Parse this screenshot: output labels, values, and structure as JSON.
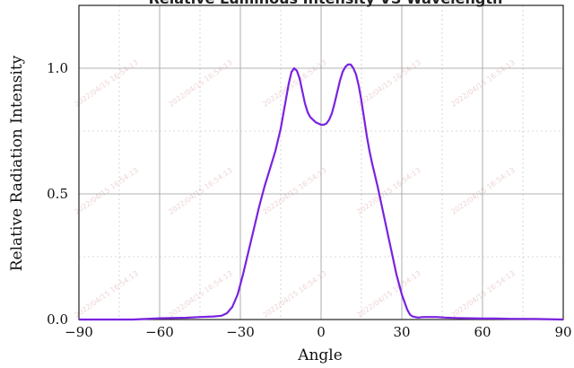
{
  "chart_data": {
    "type": "line",
    "title": "Relative Luminous Intensity VS Wavelength",
    "xlabel": "Angle",
    "ylabel": "Relative Radiation Intensity",
    "xlim": [
      -90,
      90
    ],
    "ylim": [
      0,
      1.25
    ],
    "x_ticks": [
      -90,
      -60,
      -30,
      0,
      30,
      60,
      90
    ],
    "x_tick_labels": [
      "−90",
      "−60",
      "−30",
      "0",
      "30",
      "60",
      "90"
    ],
    "y_ticks": [
      0,
      0.5,
      1.0
    ],
    "y_tick_labels": [
      "0.0",
      "0.5",
      "1.0"
    ],
    "grid": true,
    "line_color": "#7a22e0",
    "watermark": {
      "date": "2022/04/15 16:54:13"
    },
    "series": [
      {
        "x": [
          -90,
          -70,
          -60,
          -50,
          -45,
          -40,
          -37,
          -35,
          -33,
          -31,
          -29,
          -27,
          -25,
          -23,
          -21,
          -19,
          -17,
          -15,
          -13,
          -12,
          -11,
          -10,
          -9,
          -8,
          -7,
          -6,
          -5,
          -4,
          -3,
          -2,
          -1,
          0,
          1,
          2,
          3,
          4,
          5,
          6,
          7,
          8,
          9,
          10,
          11,
          12,
          13,
          14,
          15,
          16,
          17,
          18,
          19,
          20,
          21,
          22,
          23,
          24,
          25,
          26,
          27,
          28,
          29,
          30,
          31,
          32,
          33,
          34,
          35,
          36,
          38,
          40,
          43,
          46,
          50,
          55,
          60,
          65,
          70,
          80,
          90
        ],
        "y": [
          0.0,
          0.0,
          0.005,
          0.007,
          0.01,
          0.012,
          0.015,
          0.025,
          0.05,
          0.1,
          0.18,
          0.27,
          0.36,
          0.45,
          0.53,
          0.6,
          0.67,
          0.76,
          0.88,
          0.94,
          0.985,
          1.0,
          0.99,
          0.96,
          0.91,
          0.86,
          0.825,
          0.805,
          0.795,
          0.785,
          0.78,
          0.775,
          0.775,
          0.78,
          0.795,
          0.82,
          0.86,
          0.905,
          0.95,
          0.985,
          1.005,
          1.015,
          1.015,
          1.0,
          0.975,
          0.93,
          0.87,
          0.8,
          0.73,
          0.67,
          0.62,
          0.575,
          0.53,
          0.48,
          0.43,
          0.38,
          0.33,
          0.28,
          0.23,
          0.18,
          0.14,
          0.1,
          0.07,
          0.04,
          0.02,
          0.012,
          0.01,
          0.008,
          0.01,
          0.01,
          0.01,
          0.008,
          0.006,
          0.005,
          0.004,
          0.004,
          0.003,
          0.002,
          0.0
        ]
      }
    ]
  }
}
